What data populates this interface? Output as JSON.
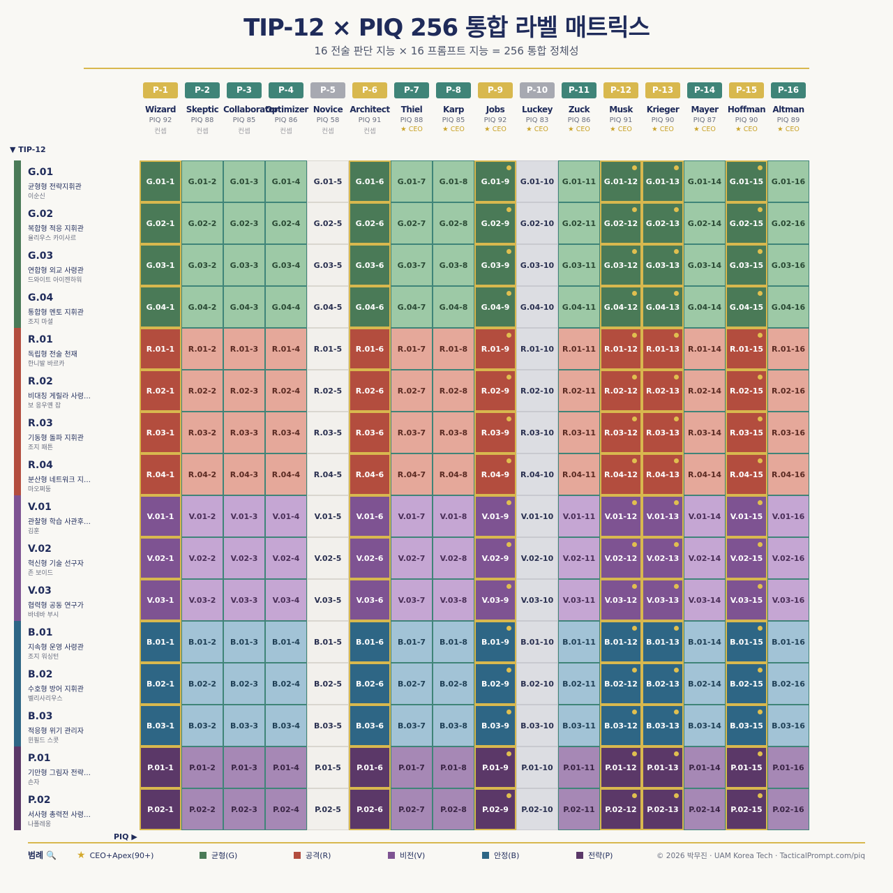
{
  "header": {
    "title": "TIP-12 × PIQ 256 통합 라벨 매트릭스",
    "subtitle": "16 전술 판단 지능 × 16 프롬프트 지능 = 256 통합 정체성"
  },
  "axis_labels": {
    "tip": "▼ TIP-12",
    "piq": "PIQ ▶"
  },
  "columns": [
    {
      "code": "P-1",
      "name": "Wizard",
      "piq": "PIQ 92",
      "tag": "컨셉",
      "badge": "gold",
      "style": "dark",
      "ceo": false
    },
    {
      "code": "P-2",
      "name": "Skeptic",
      "piq": "PIQ 88",
      "tag": "컨셉",
      "badge": "teal",
      "style": "light",
      "ceo": false
    },
    {
      "code": "P-3",
      "name": "Collaborator",
      "piq": "PIQ 85",
      "tag": "컨셉",
      "badge": "teal",
      "style": "light",
      "ceo": false
    },
    {
      "code": "P-4",
      "name": "Optimizer",
      "piq": "PIQ 86",
      "tag": "컨셉",
      "badge": "teal",
      "style": "light",
      "ceo": false
    },
    {
      "code": "P-5",
      "name": "Novice",
      "piq": "PIQ 58",
      "tag": "컨셉",
      "badge": "gray",
      "style": "neutral",
      "ceo": false
    },
    {
      "code": "P-6",
      "name": "Architect",
      "piq": "PIQ 91",
      "tag": "컨셉",
      "badge": "gold",
      "style": "dark",
      "ceo": false
    },
    {
      "code": "P-7",
      "name": "Thiel",
      "piq": "PIQ 88",
      "tag": "★ CEO",
      "badge": "teal",
      "style": "light",
      "ceo": false
    },
    {
      "code": "P-8",
      "name": "Karp",
      "piq": "PIQ 85",
      "tag": "★ CEO",
      "badge": "teal",
      "style": "light",
      "ceo": false
    },
    {
      "code": "P-9",
      "name": "Jobs",
      "piq": "PIQ 92",
      "tag": "★ CEO",
      "badge": "gold",
      "style": "dark",
      "ceo": true
    },
    {
      "code": "P-10",
      "name": "Luckey",
      "piq": "PIQ 83",
      "tag": "★ CEO",
      "badge": "gray",
      "style": "gray",
      "ceo": false
    },
    {
      "code": "P-11",
      "name": "Zuck",
      "piq": "PIQ 86",
      "tag": "★ CEO",
      "badge": "teal",
      "style": "light",
      "ceo": false
    },
    {
      "code": "P-12",
      "name": "Musk",
      "piq": "PIQ 91",
      "tag": "★ CEO",
      "badge": "gold",
      "style": "dark",
      "ceo": true
    },
    {
      "code": "P-13",
      "name": "Krieger",
      "piq": "PIQ 90",
      "tag": "★ CEO",
      "badge": "gold",
      "style": "dark",
      "ceo": true
    },
    {
      "code": "P-14",
      "name": "Mayer",
      "piq": "PIQ 87",
      "tag": "★ CEO",
      "badge": "teal",
      "style": "light",
      "ceo": false
    },
    {
      "code": "P-15",
      "name": "Hoffman",
      "piq": "PIQ 90",
      "tag": "★ CEO",
      "badge": "gold",
      "style": "dark",
      "ceo": true
    },
    {
      "code": "P-16",
      "name": "Altman",
      "piq": "PIQ 89",
      "tag": "★ CEO",
      "badge": "teal",
      "style": "light",
      "ceo": false
    }
  ],
  "rows": [
    {
      "code": "G.01",
      "desc": "균형형 전략지휘관",
      "name": "이순신",
      "group": "G"
    },
    {
      "code": "G.02",
      "desc": "복합형 적응 지휘관",
      "name": "율리우스 카이사르",
      "group": "G"
    },
    {
      "code": "G.03",
      "desc": "연합형 외교 사령관",
      "name": "드와이트 아이젠하워",
      "group": "G"
    },
    {
      "code": "G.04",
      "desc": "통합형 멘토 지휘관",
      "name": "조지 마셜",
      "group": "G"
    },
    {
      "code": "R.01",
      "desc": "독립형 전술 천재",
      "name": "한니발 바르카",
      "group": "R"
    },
    {
      "code": "R.02",
      "desc": "비대칭 게릴라 사령…",
      "name": "보 응우옌 잡",
      "group": "R"
    },
    {
      "code": "R.03",
      "desc": "기동형 돌파 지휘관",
      "name": "조지 패튼",
      "group": "R"
    },
    {
      "code": "R.04",
      "desc": "분산형 네트워크 지…",
      "name": "마오쩌둥",
      "group": "R"
    },
    {
      "code": "V.01",
      "desc": "관찰형 학습 사관후…",
      "name": "김훈",
      "group": "V"
    },
    {
      "code": "V.02",
      "desc": "혁신형 기술 선구자",
      "name": "존 보이드",
      "group": "V"
    },
    {
      "code": "V.03",
      "desc": "협력형 공동 연구가",
      "name": "바네바 부시",
      "group": "V"
    },
    {
      "code": "B.01",
      "desc": "지속형 운영 사령관",
      "name": "조지 워싱턴",
      "group": "B"
    },
    {
      "code": "B.02",
      "desc": "수호형 방어 지휘관",
      "name": "벨리사리우스",
      "group": "B"
    },
    {
      "code": "B.03",
      "desc": "적응형 위기 관리자",
      "name": "윈필드 스콧",
      "group": "B"
    },
    {
      "code": "P.01",
      "desc": "기만형 그림자 전략…",
      "name": "손자",
      "group": "P"
    },
    {
      "code": "P.02",
      "desc": "서사형 총력전 사령…",
      "name": "나폴레옹",
      "group": "P"
    }
  ],
  "groups": {
    "G": {
      "dark": "#4a7a57",
      "light": "#9dc9a6",
      "light_text": "#2b4a35",
      "bar": "#4a7a57"
    },
    "R": {
      "dark": "#b34d3e",
      "light": "#e5a89a",
      "light_text": "#5a2a22",
      "bar": "#b34d3e"
    },
    "V": {
      "dark": "#7e5392",
      "light": "#c5a6d3",
      "light_text": "#4a2f58",
      "bar": "#7e5392"
    },
    "B": {
      "dark": "#2e6685",
      "light": "#a2c3d6",
      "light_text": "#1f3f55",
      "bar": "#2e6685"
    },
    "P": {
      "dark": "#5b3868",
      "light": "#a688b5",
      "light_text": "#3a2545",
      "bar": "#5b3868"
    }
  },
  "colors": {
    "badge_gold": "#d8b84e",
    "badge_teal": "#3f8478",
    "badge_gray": "#a7a9b1",
    "neutral_cell": "#f2f0ec",
    "neutral_text": "#2a3050",
    "gray_cell": "#dcdde2",
    "gray_text": "#2a3050",
    "gold_border": "#d8b84e",
    "teal_border": "#3f8478",
    "apex_dot": "#e0bf4f"
  },
  "legend": {
    "title": "범례 🔍",
    "items": [
      {
        "label": "CEO+Apex(90+)",
        "icon": "star-icon",
        "color": "#d4a92c"
      },
      {
        "label": "균형(G)",
        "color": "#4a7a57"
      },
      {
        "label": "공격(R)",
        "color": "#b34d3e"
      },
      {
        "label": "비전(V)",
        "color": "#7e5392"
      },
      {
        "label": "안정(B)",
        "color": "#2e6685"
      },
      {
        "label": "전략(P)",
        "color": "#5b3868"
      }
    ]
  },
  "footer": {
    "copyright": "© 2026 박무진 · UAM Korea Tech · TacticalPrompt.com/piq"
  },
  "chart_data": {
    "type": "heatmap",
    "title": "TIP-12 × PIQ 256 통합 라벨 매트릭스",
    "y_categories": [
      "G.01",
      "G.02",
      "G.03",
      "G.04",
      "R.01",
      "R.02",
      "R.03",
      "R.04",
      "V.01",
      "V.02",
      "V.03",
      "B.01",
      "B.02",
      "B.03",
      "P.01",
      "P.02"
    ],
    "x_categories": [
      "P-1",
      "P-2",
      "P-3",
      "P-4",
      "P-5",
      "P-6",
      "P-7",
      "P-8",
      "P-9",
      "P-10",
      "P-11",
      "P-12",
      "P-13",
      "P-14",
      "P-15",
      "P-16"
    ],
    "cell_label_pattern": "{row}-{col_index}",
    "ceo_apex_columns": [
      "P-9",
      "P-12",
      "P-13",
      "P-15"
    ]
  }
}
